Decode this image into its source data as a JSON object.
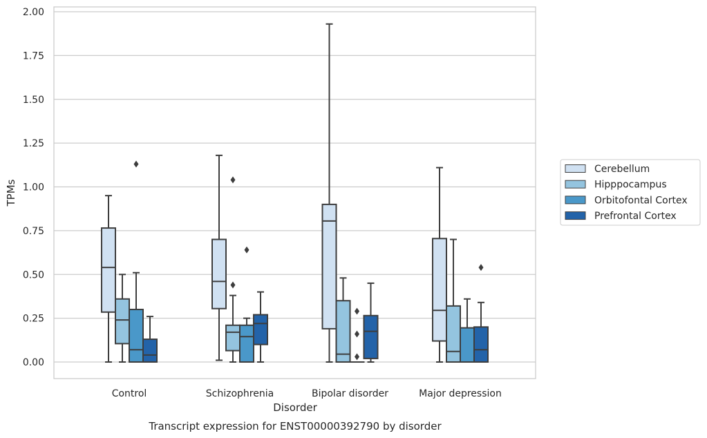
{
  "chart_data": {
    "type": "box",
    "xlabel": "Disorder",
    "ylabel": "TPMs",
    "caption": "Transcript expression for ENST00000392790 by disorder",
    "ylim": [
      -0.09,
      2.02
    ],
    "y_ticks": [
      "0.00",
      "0.25",
      "0.50",
      "0.75",
      "1.00",
      "1.25",
      "1.50",
      "1.75",
      "2.00"
    ],
    "grid": "horizontal",
    "legend_position": "right",
    "categories": [
      "Control",
      "Schizophrenia",
      "Bipolar disorder",
      "Major depression"
    ],
    "series": [
      {
        "name": "Cerebellum",
        "color": "#d0e1f2",
        "boxes": [
          {
            "whislo": 0.0,
            "q1": 0.285,
            "med": 0.54,
            "q3": 0.765,
            "whishi": 0.95,
            "fliers": []
          },
          {
            "whislo": 0.01,
            "q1": 0.305,
            "med": 0.46,
            "q3": 0.7,
            "whishi": 1.18,
            "fliers": []
          },
          {
            "whislo": 0.0,
            "q1": 0.19,
            "med": 0.805,
            "q3": 0.9,
            "whishi": 1.93,
            "fliers": []
          },
          {
            "whislo": 0.0,
            "q1": 0.12,
            "med": 0.295,
            "q3": 0.705,
            "whishi": 1.11,
            "fliers": []
          }
        ]
      },
      {
        "name": "Hipppocampus",
        "color": "#94c4df",
        "boxes": [
          {
            "whislo": 0.0,
            "q1": 0.105,
            "med": 0.24,
            "q3": 0.36,
            "whishi": 0.5,
            "fliers": []
          },
          {
            "whislo": 0.0,
            "q1": 0.065,
            "med": 0.17,
            "q3": 0.21,
            "whishi": 0.38,
            "fliers": [
              0.44,
              1.04
            ]
          },
          {
            "whislo": 0.0,
            "q1": 0.0,
            "med": 0.045,
            "q3": 0.35,
            "whishi": 0.48,
            "fliers": []
          },
          {
            "whislo": 0.0,
            "q1": 0.0,
            "med": 0.06,
            "q3": 0.32,
            "whishi": 0.7,
            "fliers": []
          }
        ]
      },
      {
        "name": "Orbitofontal Cortex",
        "color": "#4a98c9",
        "boxes": [
          {
            "whislo": 0.0,
            "q1": 0.0,
            "med": 0.07,
            "q3": 0.3,
            "whishi": 0.51,
            "fliers": [
              1.13
            ]
          },
          {
            "whislo": 0.0,
            "q1": 0.0,
            "med": 0.145,
            "q3": 0.21,
            "whishi": 0.25,
            "fliers": [
              0.64
            ]
          },
          {
            "whislo": 0.0,
            "q1": 0.0,
            "med": 0.0,
            "q3": 0.0,
            "whishi": 0.0,
            "fliers": [
              0.03,
              0.16,
              0.29
            ]
          },
          {
            "whislo": 0.0,
            "q1": 0.0,
            "med": 0.0,
            "q3": 0.195,
            "whishi": 0.36,
            "fliers": []
          }
        ]
      },
      {
        "name": "Prefrontal Cortex",
        "color": "#2363a9",
        "boxes": [
          {
            "whislo": 0.0,
            "q1": 0.0,
            "med": 0.04,
            "q3": 0.13,
            "whishi": 0.26,
            "fliers": []
          },
          {
            "whislo": 0.0,
            "q1": 0.1,
            "med": 0.22,
            "q3": 0.27,
            "whishi": 0.4,
            "fliers": []
          },
          {
            "whislo": 0.0,
            "q1": 0.02,
            "med": 0.175,
            "q3": 0.265,
            "whishi": 0.45,
            "fliers": []
          },
          {
            "whislo": 0.0,
            "q1": 0.0,
            "med": 0.07,
            "q3": 0.2,
            "whishi": 0.34,
            "fliers": [
              0.54
            ]
          }
        ]
      }
    ],
    "style": {
      "line_color": "#3d3d3d",
      "grid_color": "#cccccc",
      "frame_color": "#cccccc",
      "background": "#ffffff"
    }
  }
}
